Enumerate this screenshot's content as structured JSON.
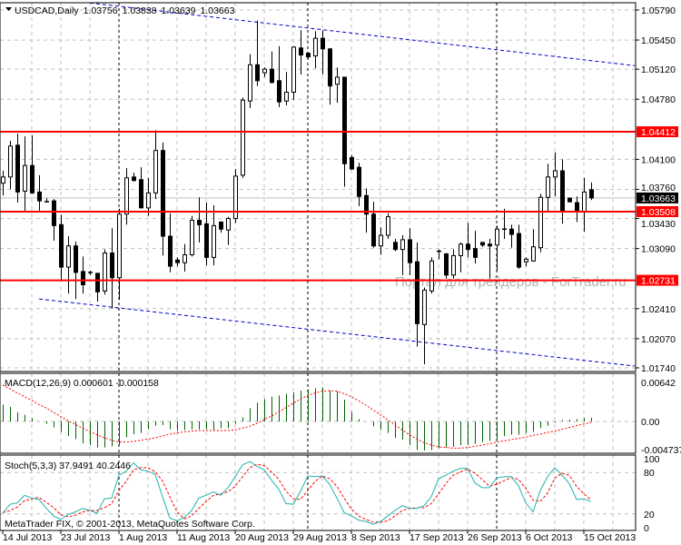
{
  "header": {
    "symbol_period": "USDCAD,Daily",
    "open": "1.03756",
    "high": "1.03838",
    "low": "1.03639",
    "close": "1.03663"
  },
  "watermark": "Портал для трейдеров - ForTrader.ru",
  "copyright": "MetaTrader FIX, © 2001-2013, MetaQuotes Software Corp.",
  "colors": {
    "bear": "#000000",
    "bull": "#ffffff",
    "hline": "#ff0000",
    "trend": "#0000cc",
    "macd_hist": "#006400",
    "macd_signal": "#ff0000",
    "stoch_main": "#20b2aa",
    "stoch_signal": "#ff0000",
    "bid": "#000000"
  },
  "chart_data": [
    {
      "type": "candlestick",
      "title": "USDCAD,Daily",
      "price_ticks": [
        "1.05790",
        "1.05450",
        "1.05120",
        "1.04780",
        "1.04100",
        "1.03760",
        "1.03430",
        "1.03090",
        "1.02410",
        "1.02070",
        "1.01740"
      ],
      "ylim": [
        1.0174,
        1.0579
      ],
      "date_labels": [
        {
          "bar": 0,
          "label": "14 Jul 2013"
        },
        {
          "bar": 8,
          "label": "23 Jul 2013"
        },
        {
          "bar": 16,
          "label": "1 Aug 2013"
        },
        {
          "bar": 24,
          "label": "11 Aug 2013"
        },
        {
          "bar": 32,
          "label": "20 Aug 2013"
        },
        {
          "bar": 40,
          "label": "29 Aug 2013"
        },
        {
          "bar": 48,
          "label": "8 Sep 2013"
        },
        {
          "bar": 56,
          "label": "17 Sep 2013"
        },
        {
          "bar": 64,
          "label": "26 Sep 2013"
        },
        {
          "bar": 72,
          "label": "6 Oct 2013"
        },
        {
          "bar": 80,
          "label": "15 Oct 2013"
        }
      ],
      "period_separators": [
        16,
        42,
        68
      ],
      "horizontal_lines": [
        {
          "price": 1.04412,
          "label": "1.04412"
        },
        {
          "price": 1.03508,
          "label": "1.03508"
        },
        {
          "price": 1.02731,
          "label": "1.02731"
        }
      ],
      "bid": {
        "price": 1.03663,
        "label": "1.03663"
      },
      "trendlines": [
        {
          "from": [
            12,
            1.0587
          ],
          "to": [
            87,
            1.0516
          ]
        },
        {
          "from": [
            5,
            1.0252
          ],
          "to": [
            87,
            1.0176
          ]
        }
      ],
      "ohlc": [
        [
          1.0383,
          1.0397,
          1.0369,
          1.039
        ],
        [
          1.039,
          1.0431,
          1.0376,
          1.0425
        ],
        [
          1.0426,
          1.0439,
          1.0361,
          1.0373
        ],
        [
          1.0374,
          1.0436,
          1.0352,
          1.0403
        ],
        [
          1.0403,
          1.0437,
          1.0371,
          1.0372
        ],
        [
          1.0373,
          1.0392,
          1.0352,
          1.0363
        ],
        [
          1.0362,
          1.0366,
          1.0361,
          1.0361
        ],
        [
          1.0363,
          1.0365,
          1.0318,
          1.0335
        ],
        [
          1.0336,
          1.0347,
          1.0274,
          1.0288
        ],
        [
          1.0288,
          1.0323,
          1.0258,
          1.0312
        ],
        [
          1.0312,
          1.0317,
          1.0252,
          1.0282
        ],
        [
          1.0283,
          1.03,
          1.0258,
          1.0268
        ],
        [
          1.0282,
          1.0284,
          1.0279,
          1.0282
        ],
        [
          1.0281,
          1.0281,
          1.0249,
          1.026
        ],
        [
          1.0261,
          1.0308,
          1.0257,
          1.0304
        ],
        [
          1.0304,
          1.0332,
          1.0241,
          1.0276
        ],
        [
          1.0276,
          1.0354,
          1.0251,
          1.0348
        ],
        [
          1.0348,
          1.04,
          1.0336,
          1.0389
        ],
        [
          1.039,
          1.0395,
          1.0385,
          1.0386
        ],
        [
          1.0387,
          1.0401,
          1.0355,
          1.0355
        ],
        [
          1.0355,
          1.0389,
          1.0346,
          1.0372
        ],
        [
          1.0372,
          1.0443,
          1.0365,
          1.042
        ],
        [
          1.042,
          1.0429,
          1.0301,
          1.0323
        ],
        [
          1.0323,
          1.0349,
          1.0282,
          1.0289
        ],
        [
          1.0296,
          1.0299,
          1.0289,
          1.0293
        ],
        [
          1.0293,
          1.0314,
          1.0283,
          1.0302
        ],
        [
          1.0302,
          1.0346,
          1.03,
          1.0341
        ],
        [
          1.0341,
          1.0367,
          1.0316,
          1.0336
        ],
        [
          1.0337,
          1.0361,
          1.029,
          1.0299
        ],
        [
          1.0299,
          1.0358,
          1.029,
          1.0335
        ],
        [
          1.0339,
          1.034,
          1.0327,
          1.0331
        ],
        [
          1.033,
          1.0345,
          1.0313,
          1.0343
        ],
        [
          1.0343,
          1.0399,
          1.0338,
          1.0391
        ],
        [
          1.0392,
          1.048,
          1.0389,
          1.0477
        ],
        [
          1.0476,
          1.0529,
          1.0468,
          1.0517
        ],
        [
          1.0517,
          1.0567,
          1.0493,
          1.0499
        ],
        [
          1.0508,
          1.0514,
          1.0503,
          1.0512
        ],
        [
          1.0512,
          1.0532,
          1.0496,
          1.0497
        ],
        [
          1.0499,
          1.0538,
          1.0469,
          1.0475
        ],
        [
          1.0476,
          1.0509,
          1.0471,
          1.0486
        ],
        [
          1.0486,
          1.0538,
          1.0477,
          1.0537
        ],
        [
          1.0536,
          1.0556,
          1.0506,
          1.0528
        ],
        [
          1.053,
          1.0531,
          1.0524,
          1.0526
        ],
        [
          1.0527,
          1.0555,
          1.0513,
          1.0547
        ],
        [
          1.0547,
          1.0556,
          1.0506,
          1.0535
        ],
        [
          1.0535,
          1.0536,
          1.0472,
          1.0493
        ],
        [
          1.0495,
          1.0514,
          1.0474,
          1.0503
        ],
        [
          1.0503,
          1.0503,
          1.0379,
          1.0405
        ],
        [
          1.0412,
          1.0415,
          1.0398,
          1.0399
        ],
        [
          1.0401,
          1.0406,
          1.0357,
          1.0368
        ],
        [
          1.0369,
          1.0377,
          1.0327,
          1.0348
        ],
        [
          1.0348,
          1.0362,
          1.031,
          1.0312
        ],
        [
          1.0312,
          1.0333,
          1.0302,
          1.0324
        ],
        [
          1.0324,
          1.0349,
          1.032,
          1.0345
        ],
        [
          1.0316,
          1.032,
          1.0306,
          1.0308
        ],
        [
          1.0308,
          1.0324,
          1.0279,
          1.0319
        ],
        [
          1.0319,
          1.0332,
          1.0279,
          1.0293
        ],
        [
          1.0294,
          1.0316,
          1.0198,
          1.0224
        ],
        [
          1.0223,
          1.0265,
          1.0178,
          1.0262
        ],
        [
          1.0261,
          1.0299,
          1.0258,
          1.0295
        ],
        [
          1.0306,
          1.0308,
          1.0297,
          1.0305
        ],
        [
          1.0303,
          1.0304,
          1.0275,
          1.0279
        ],
        [
          1.0279,
          1.0308,
          1.0275,
          1.0301
        ],
        [
          1.0301,
          1.0316,
          1.0282,
          1.0314
        ],
        [
          1.0314,
          1.0338,
          1.0299,
          1.0308
        ],
        [
          1.0309,
          1.0329,
          1.0292,
          1.0299
        ],
        [
          1.0316,
          1.0316,
          1.0311,
          1.0313
        ],
        [
          1.0314,
          1.032,
          1.0275,
          1.0312
        ],
        [
          1.0313,
          1.0335,
          1.0284,
          1.0331
        ],
        [
          1.0331,
          1.0354,
          1.032,
          1.0331
        ],
        [
          1.0331,
          1.0336,
          1.031,
          1.0325
        ],
        [
          1.0326,
          1.0336,
          1.0286,
          1.0288
        ],
        [
          1.0294,
          1.0299,
          1.0289,
          1.0297
        ],
        [
          1.0295,
          1.0331,
          1.0294,
          1.0311
        ],
        [
          1.031,
          1.0371,
          1.0305,
          1.0367
        ],
        [
          1.0367,
          1.0405,
          1.0351,
          1.039
        ],
        [
          1.039,
          1.0418,
          1.0368,
          1.0397
        ],
        [
          1.0397,
          1.041,
          1.0337,
          1.0351
        ],
        [
          1.0366,
          1.0367,
          1.0361,
          1.0362
        ],
        [
          1.0361,
          1.0368,
          1.0339,
          1.0351
        ],
        [
          1.0351,
          1.0389,
          1.0328,
          1.0373
        ],
        [
          1.03756,
          1.03838,
          1.03639,
          1.03663
        ]
      ]
    },
    {
      "type": "bar",
      "title": "MACD(12,26,9) 0.000601 -0.000158",
      "ticks": [
        {
          "value": 0.00642,
          "label": "0.00642"
        },
        {
          "value": 0,
          "label": "0.00"
        },
        {
          "value": -0.004737,
          "label": "-0.004737"
        }
      ],
      "histogram": [
        0.0028,
        0.0024,
        0.0015,
        0.0011,
        0.0005,
        0,
        -0.0004,
        -0.001,
        -0.0017,
        -0.0024,
        -0.0029,
        -0.0036,
        -0.0039,
        -0.0043,
        -0.0043,
        -0.0041,
        -0.0039,
        -0.0026,
        -0.0021,
        -0.0019,
        -0.0013,
        -0.0007,
        -0.0006,
        -0.0013,
        -0.0016,
        -0.0014,
        -0.0013,
        -0.0013,
        -0.0013,
        -0.0014,
        -0.0011,
        -0.0011,
        -0.0004,
        0.0007,
        0.0022,
        0.0031,
        0.0037,
        0.0041,
        0.0043,
        0.0046,
        0.0048,
        0.0051,
        0.0053,
        0.0055,
        0.0056,
        0.0051,
        0.005,
        0.0036,
        0.0016,
        0.0004,
        0,
        -0.0008,
        -0.0014,
        -0.0019,
        -0.0027,
        -0.003,
        -0.0039,
        -0.0047,
        -0.0048,
        -0.0047,
        -0.0044,
        -0.0043,
        -0.0042,
        -0.0039,
        -0.0039,
        -0.0037,
        -0.0034,
        -0.0032,
        -0.0029,
        -0.0024,
        -0.0022,
        -0.0022,
        -0.0019,
        -0.0017,
        -0.0011,
        -0.0007,
        -0.0002,
        0.0002,
        0.0003,
        0.0004,
        0.0006,
        0.000601
      ],
      "signal": [
        0.006,
        0.0054,
        0.0047,
        0.0041,
        0.0035,
        0.0028,
        0.0022,
        0.0015,
        0.0008,
        0.0001,
        -0.0005,
        -0.0011,
        -0.0017,
        -0.0022,
        -0.0027,
        -0.0031,
        -0.0034,
        -0.0034,
        -0.0033,
        -0.0031,
        -0.0029,
        -0.0027,
        -0.0024,
        -0.0021,
        -0.0019,
        -0.0017,
        -0.0016,
        -0.0015,
        -0.0015,
        -0.0015,
        -0.0015,
        -0.0015,
        -0.0014,
        -0.0011,
        -0.0008,
        -0.0003,
        0.0003,
        0.0009,
        0.0016,
        0.0023,
        0.003,
        0.0037,
        0.0043,
        0.0047,
        0.005,
        0.0051,
        0.005,
        0.0046,
        0.0041,
        0.0034,
        0.0027,
        0.0019,
        0.0011,
        0.0003,
        -0.0006,
        -0.0014,
        -0.0022,
        -0.0029,
        -0.0035,
        -0.0039,
        -0.0042,
        -0.0043,
        -0.0044,
        -0.0044,
        -0.0043,
        -0.0041,
        -0.0039,
        -0.0037,
        -0.0034,
        -0.0032,
        -0.003,
        -0.0028,
        -0.0026,
        -0.0023,
        -0.0021,
        -0.0018,
        -0.0016,
        -0.0013,
        -0.001,
        -0.0007,
        -0.0004,
        -0.000158
      ]
    },
    {
      "type": "line",
      "title": "Stoch(5,3,3) 37.9491 40.2446",
      "ticks": [
        {
          "value": 100,
          "label": "100"
        },
        {
          "value": 80,
          "label": "80"
        },
        {
          "value": 20,
          "label": "20"
        },
        {
          "value": 0,
          "label": "0"
        }
      ],
      "levels": [
        20,
        80
      ],
      "series": [
        {
          "name": "main",
          "values": [
            21,
            34,
            36,
            47,
            43,
            41,
            28,
            17,
            12,
            19,
            23,
            28,
            25,
            21,
            42,
            43,
            76,
            82,
            94,
            84,
            82,
            77,
            45,
            14,
            10,
            15,
            25,
            43,
            47,
            52,
            47,
            58,
            74,
            91,
            96,
            89,
            84,
            69,
            56,
            35,
            34,
            53,
            75,
            74,
            75,
            63,
            43,
            22,
            17,
            11,
            9,
            5,
            9,
            17,
            25,
            32,
            28,
            28,
            32,
            45,
            71,
            76,
            82,
            86,
            86,
            65,
            58,
            58,
            72,
            74,
            74,
            61,
            36,
            23,
            54,
            74,
            87,
            76,
            64,
            41,
            42,
            37.9491
          ]
        },
        {
          "name": "signal",
          "values": [
            22,
            25,
            30,
            39,
            42,
            44,
            37,
            29,
            19,
            16,
            18,
            23,
            25,
            25,
            29,
            35,
            54,
            67,
            84,
            87,
            87,
            81,
            68,
            45,
            23,
            13,
            17,
            28,
            38,
            47,
            49,
            52,
            60,
            74,
            87,
            92,
            90,
            81,
            70,
            53,
            42,
            41,
            54,
            67,
            75,
            71,
            60,
            43,
            27,
            17,
            12,
            8,
            8,
            10,
            17,
            25,
            28,
            29,
            29,
            35,
            49,
            64,
            76,
            81,
            85,
            79,
            70,
            60,
            63,
            68,
            73,
            70,
            57,
            40,
            38,
            50,
            72,
            79,
            76,
            60,
            49,
            40.2446
          ]
        }
      ]
    }
  ]
}
